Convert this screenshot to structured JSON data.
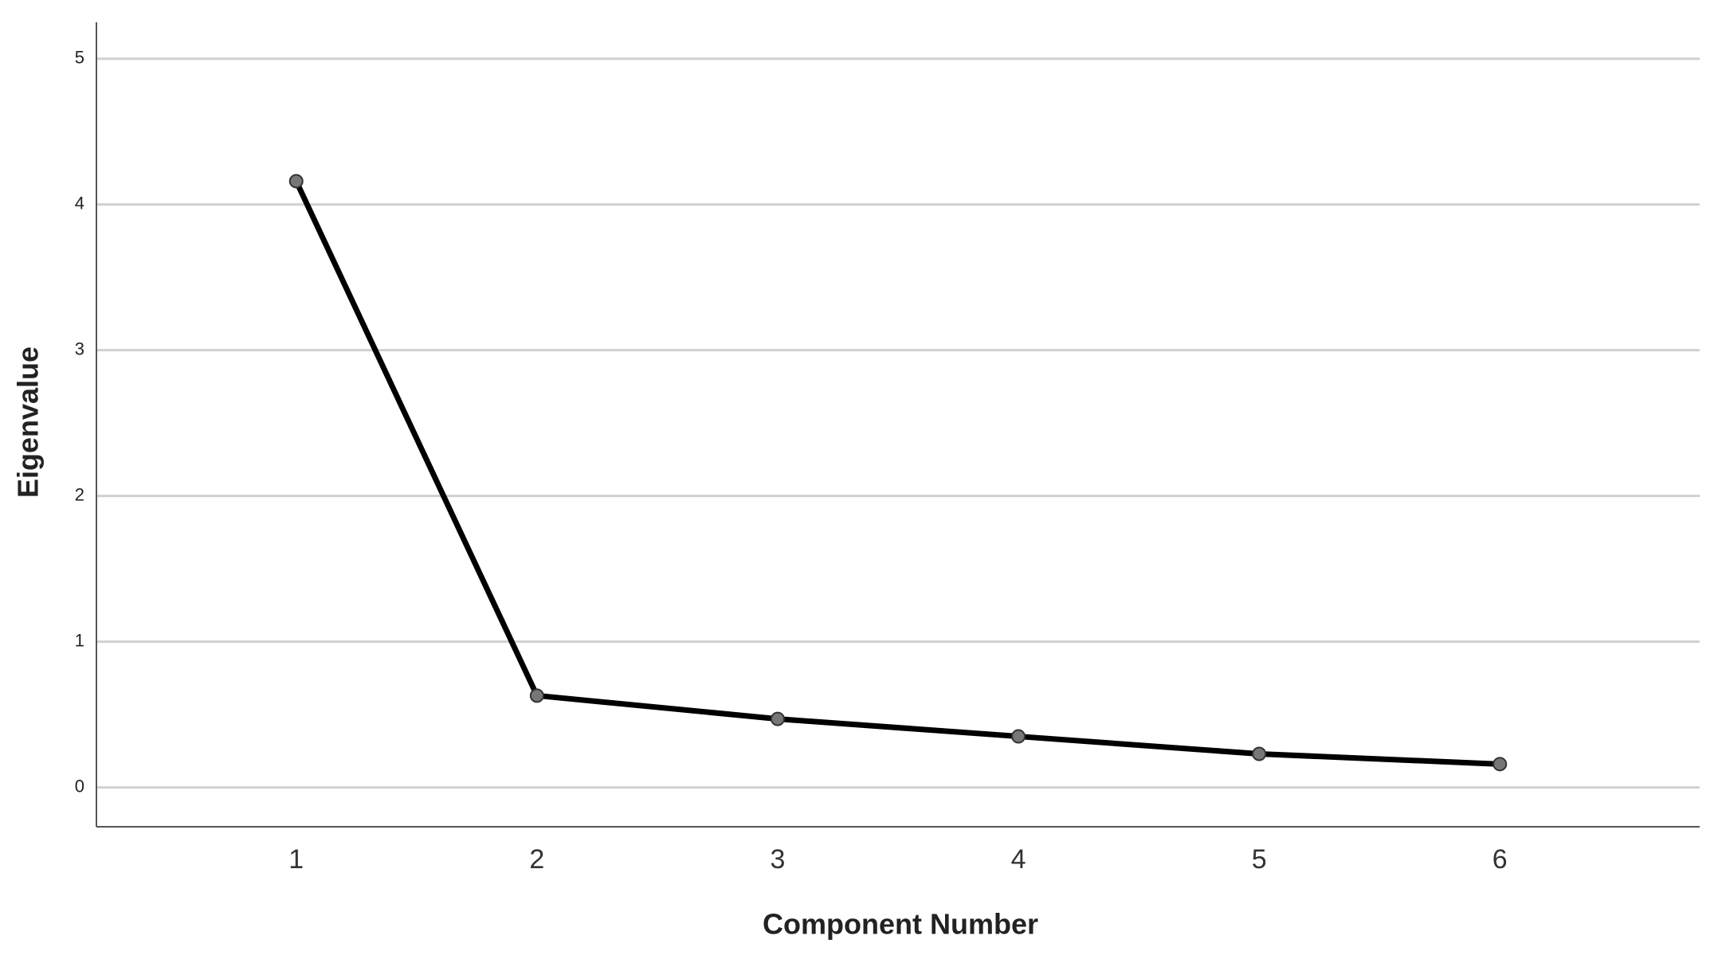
{
  "chart_data": {
    "type": "line",
    "x_label": "Component Number",
    "y_label": "Eigenvalue",
    "x": [
      1,
      2,
      3,
      4,
      5,
      6
    ],
    "series": [
      {
        "name": "Eigenvalue",
        "color": "#000000",
        "values": [
          4.16,
          0.63,
          0.47,
          0.35,
          0.23,
          0.16
        ]
      }
    ],
    "xlim": [
      0.17,
      6.83
    ],
    "xticks": [
      1,
      2,
      3,
      4,
      5,
      6
    ],
    "ylim": [
      -0.27,
      5.25
    ],
    "yticks": [
      0,
      1,
      2,
      3,
      4,
      5
    ],
    "grid": true
  }
}
